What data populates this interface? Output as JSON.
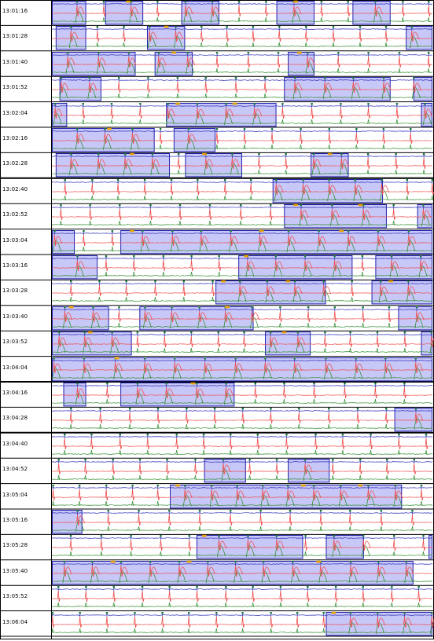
{
  "chart_data": {
    "type": "line",
    "title": "",
    "colors": {
      "background": "#ffffff",
      "highlight_fill": "#c8c8f8",
      "highlight_border": "#2020b0",
      "trace_top": "#2a2ab8",
      "trace_mid": "#ee4b4b",
      "trace_low": "#2e8b2e",
      "beat_marker": "#1a7a3a",
      "event_marker": "#e8a000",
      "grid": "#000000"
    },
    "rows": [
      {
        "time": "13:01:16",
        "bands": [
          [
            0,
            0.09
          ],
          [
            0.14,
            0.24
          ],
          [
            0.34,
            0.44
          ],
          [
            0.59,
            0.69
          ],
          [
            0.79,
            0.89
          ]
        ],
        "events": [
          0.18,
          0.62
        ],
        "thick": false
      },
      {
        "time": "13:01:28",
        "bands": [
          [
            0.01,
            0.09
          ],
          [
            0.25,
            0.35
          ],
          [
            0.93,
            1.0
          ]
        ],
        "events": [
          0.28
        ],
        "thick": false
      },
      {
        "time": "13:01:40",
        "bands": [
          [
            0.0,
            0.22
          ],
          [
            0.27,
            0.37
          ],
          [
            0.62,
            0.69
          ]
        ],
        "events": [
          0.3,
          0.63
        ],
        "thick": false
      },
      {
        "time": "13:01:52",
        "bands": [
          [
            0.02,
            0.13
          ],
          [
            0.61,
            0.89
          ],
          [
            0.95,
            1.0
          ]
        ],
        "events": [],
        "thick": false
      },
      {
        "time": "13:02:04",
        "bands": [
          [
            0.0,
            0.04
          ],
          [
            0.3,
            0.59
          ],
          [
            0.97,
            1.0
          ]
        ],
        "events": [
          0.31,
          0.46
        ],
        "thick": false
      },
      {
        "time": "13:02:16",
        "bands": [
          [
            0.0,
            0.27
          ],
          [
            0.32,
            0.43
          ]
        ],
        "events": [
          0.13
        ],
        "thick": false
      },
      {
        "time": "13:02:28",
        "bands": [
          [
            0.01,
            0.31
          ],
          [
            0.35,
            0.5
          ],
          [
            0.68,
            0.78
          ]
        ],
        "events": [
          0.19,
          0.38,
          0.71
        ],
        "thick": true
      },
      {
        "time": "13:02:40",
        "bands": [
          [
            0.58,
            0.87
          ]
        ],
        "events": [],
        "thick": false
      },
      {
        "time": "13:02:52",
        "bands": [
          [
            0.61,
            0.88
          ],
          [
            0.96,
            1.0
          ]
        ],
        "events": [
          0.62,
          0.79
        ],
        "thick": false
      },
      {
        "time": "13:03:04",
        "bands": [
          [
            0.0,
            0.06
          ],
          [
            0.18,
            1.0
          ]
        ],
        "events": [
          0.19,
          0.53,
          0.74
        ],
        "thick": false
      },
      {
        "time": "13:03:16",
        "bands": [
          [
            0.0,
            0.12
          ],
          [
            0.49,
            0.79
          ],
          [
            0.85,
            1.0
          ]
        ],
        "events": [
          0.49
        ],
        "thick": false
      },
      {
        "time": "13:03:28",
        "bands": [
          [
            0.43,
            0.72
          ],
          [
            0.84,
            1.0
          ]
        ],
        "events": [
          0.43,
          0.6,
          0.87
        ],
        "thick": false
      },
      {
        "time": "13:03:40",
        "bands": [
          [
            0.0,
            0.15
          ],
          [
            0.23,
            0.53
          ],
          [
            0.91,
            1.0
          ]
        ],
        "events": [
          0.03,
          0.44
        ],
        "thick": false
      },
      {
        "time": "13:03:52",
        "bands": [
          [
            0.0,
            0.21
          ],
          [
            0.56,
            0.68
          ],
          [
            0.97,
            1.0
          ]
        ],
        "events": [
          0.08,
          0.59
        ],
        "thick": false
      },
      {
        "time": "13:04:04",
        "bands": [
          [
            0.0,
            1.0
          ]
        ],
        "events": [
          0.15
        ],
        "thick": true
      },
      {
        "time": "13:04:16",
        "bands": [
          [
            0.03,
            0.09
          ],
          [
            0.18,
            0.48
          ]
        ],
        "events": [
          0.35
        ],
        "thick": false
      },
      {
        "time": "13:04:28",
        "bands": [
          [
            0.9,
            1.0
          ]
        ],
        "events": [],
        "thick": true
      },
      {
        "time": "13:04:40",
        "bands": [],
        "events": [],
        "thick": false
      },
      {
        "time": "13:04:52",
        "bands": [
          [
            0.4,
            0.51
          ],
          [
            0.62,
            0.73
          ]
        ],
        "events": [],
        "thick": false
      },
      {
        "time": "13:05:04",
        "bands": [
          [
            0.31,
            0.92
          ]
        ],
        "events": [
          0.31,
          0.64,
          0.79
        ],
        "thick": false
      },
      {
        "time": "13:05:16",
        "bands": [
          [
            0.0,
            0.08
          ]
        ],
        "events": [],
        "thick": false
      },
      {
        "time": "13:05:28",
        "bands": [
          [
            0.38,
            0.66
          ],
          [
            0.72,
            0.82
          ],
          [
            0.99,
            1.0
          ]
        ],
        "events": [
          0.38
        ],
        "thick": false
      },
      {
        "time": "13:05:40",
        "bands": [
          [
            0.0,
            0.95
          ]
        ],
        "events": [
          0.14,
          0.34,
          0.68
        ],
        "thick": false
      },
      {
        "time": "13:05:52",
        "bands": [],
        "events": [],
        "thick": false
      },
      {
        "time": "13:06:04",
        "bands": [
          [
            0.72,
            1.0
          ]
        ],
        "events": [
          0.72
        ],
        "thick": false
      }
    ]
  }
}
